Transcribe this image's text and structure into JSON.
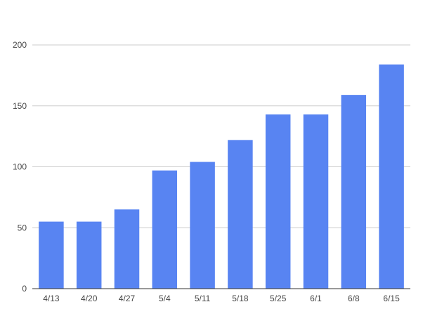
{
  "chart_data": {
    "type": "bar",
    "categories": [
      "4/13",
      "4/20",
      "4/27",
      "5/4",
      "5/11",
      "5/18",
      "5/25",
      "6/1",
      "6/8",
      "6/15"
    ],
    "values": [
      55,
      55,
      65,
      97,
      104,
      122,
      143,
      143,
      159,
      184
    ],
    "title": "",
    "xlabel": "",
    "ylabel": "",
    "ylim": [
      0,
      200
    ],
    "yticks": [
      0,
      50,
      100,
      150,
      200
    ],
    "grid": true,
    "bar_color": "#5884f2"
  }
}
